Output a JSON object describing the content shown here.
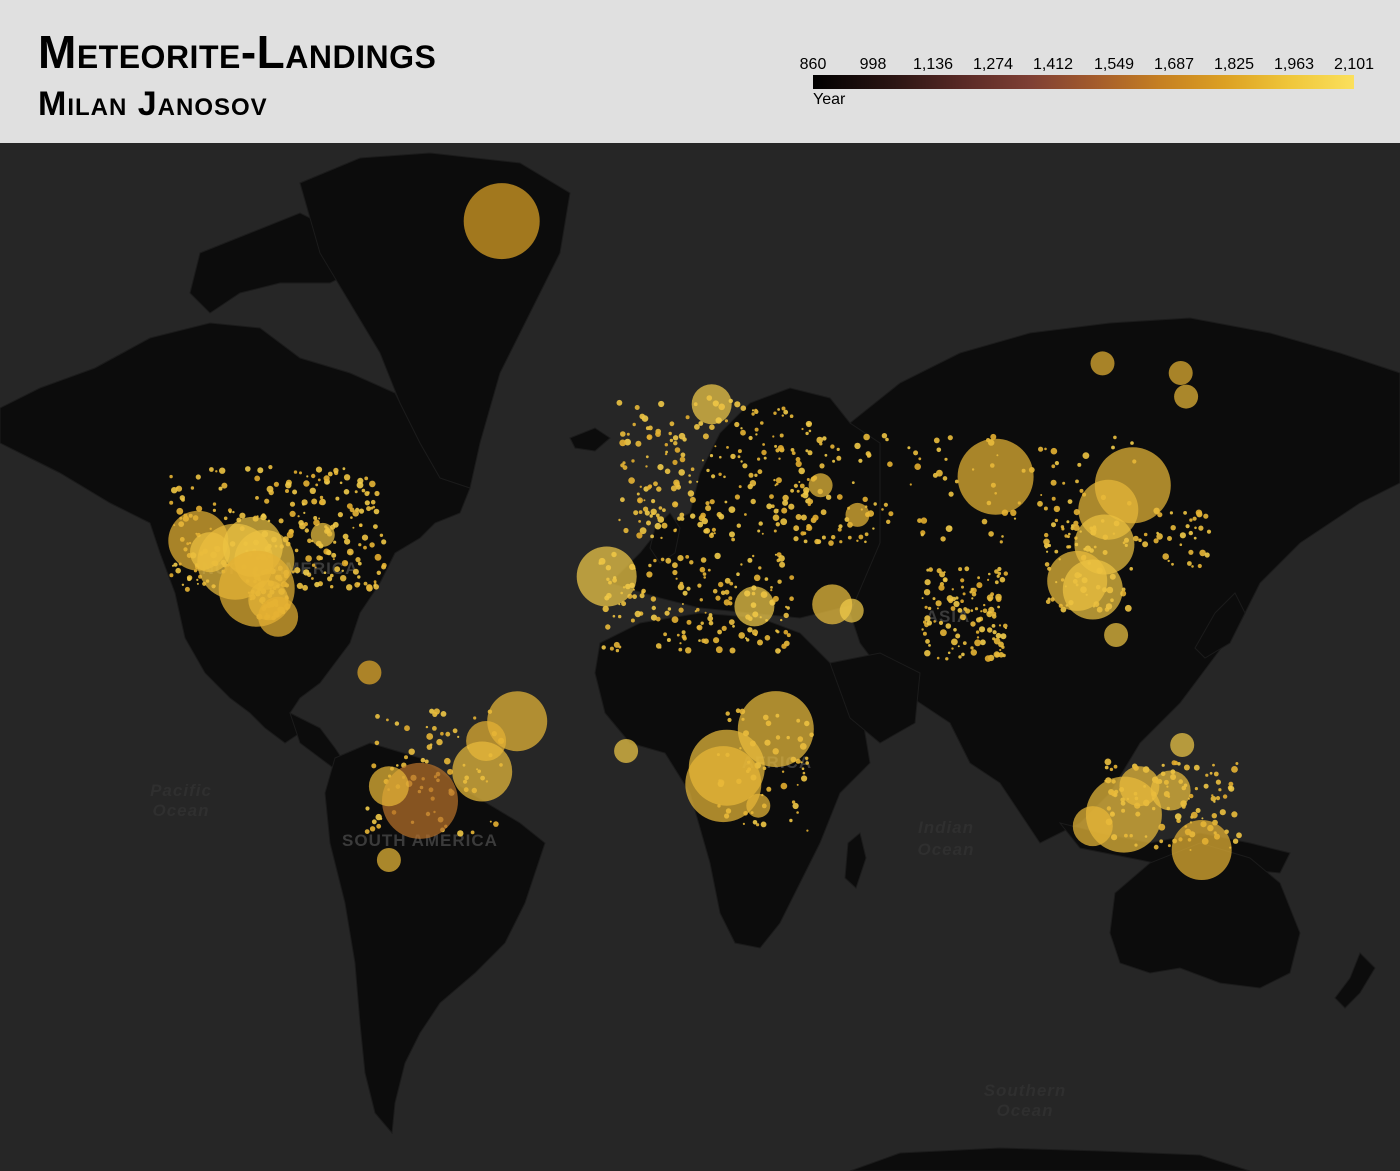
{
  "header": {
    "title": "Meteorite-Landings",
    "author": "Milan Janosov"
  },
  "legend": {
    "title": "Year",
    "ticks": [
      "860",
      "998",
      "1,136",
      "1,274",
      "1,412",
      "1,549",
      "1,687",
      "1,825",
      "1,963",
      "2,101"
    ],
    "range": [
      860,
      2101
    ],
    "colors": [
      "#000000",
      "#5a2a26",
      "#a35b2c",
      "#dca023",
      "#fbe05c"
    ]
  },
  "map": {
    "background": "#262626",
    "land_color": "#0c0c0c",
    "continent_labels": [
      "NORTH AMERICA",
      "SOUTH AMERICA",
      "AFRICA",
      "ASIA"
    ],
    "ocean_labels": [
      [
        "Pacific",
        "Ocean"
      ],
      [
        "Indian",
        "Ocean"
      ],
      [
        "Southern",
        "Ocean"
      ]
    ]
  },
  "chart_data": {
    "type": "scatter",
    "x_field": "longitude",
    "y_field": "latitude",
    "size_field": "mass",
    "color_field": "year",
    "points": [
      {
        "lon": -40.0,
        "lat": 76.1,
        "year": 1800,
        "size": "xl"
      },
      {
        "lon": -118.0,
        "lat": 35.8,
        "year": 1880,
        "size": "l"
      },
      {
        "lon": -115.0,
        "lat": 33.4,
        "year": 1950,
        "size": "m"
      },
      {
        "lon": -108.5,
        "lat": 31.3,
        "year": 1930,
        "size": "xl"
      },
      {
        "lon": -101.0,
        "lat": 31.7,
        "year": 1940,
        "size": "l"
      },
      {
        "lon": -104.0,
        "lat": 34.5,
        "year": 1960,
        "size": "l"
      },
      {
        "lon": -103.0,
        "lat": 25.2,
        "year": 1880,
        "size": "xl"
      },
      {
        "lon": -100.0,
        "lat": 22.5,
        "year": 1900,
        "size": "m"
      },
      {
        "lon": -97.5,
        "lat": 18.5,
        "year": 1870,
        "size": "m"
      },
      {
        "lon": -86.0,
        "lat": 37.0,
        "year": 1950,
        "size": "s"
      },
      {
        "lon": -74.0,
        "lat": 4.5,
        "year": 1830,
        "size": "s"
      },
      {
        "lon": -36.0,
        "lat": -8.0,
        "year": 1900,
        "size": "l"
      },
      {
        "lon": -44.0,
        "lat": -13.0,
        "year": 1880,
        "size": "m"
      },
      {
        "lon": -45.0,
        "lat": -20.5,
        "year": 1920,
        "size": "l"
      },
      {
        "lon": -61.0,
        "lat": -27.4,
        "year": 1576,
        "size": "xl"
      },
      {
        "lon": -69.0,
        "lat": -24.0,
        "year": 1900,
        "size": "m"
      },
      {
        "lon": -69.0,
        "lat": -40.0,
        "year": 1900,
        "size": "s"
      },
      {
        "lon": -13.0,
        "lat": 28.0,
        "year": 2000,
        "size": "l"
      },
      {
        "lon": -8.0,
        "lat": -15.5,
        "year": 1980,
        "size": "s"
      },
      {
        "lon": 17.9,
        "lat": -19.6,
        "year": 1920,
        "size": "xl"
      },
      {
        "lon": 17.0,
        "lat": -23.5,
        "year": 1900,
        "size": "xl"
      },
      {
        "lon": 30.5,
        "lat": -10.0,
        "year": 1930,
        "size": "xl"
      },
      {
        "lon": 26.0,
        "lat": -28.5,
        "year": 1900,
        "size": "s"
      },
      {
        "lon": 25.0,
        "lat": 21.0,
        "year": 2000,
        "size": "m"
      },
      {
        "lon": 45.0,
        "lat": 21.5,
        "year": 1940,
        "size": "m"
      },
      {
        "lon": 50.0,
        "lat": 20.0,
        "year": 2000,
        "size": "s"
      },
      {
        "lon": 14.0,
        "lat": 59.0,
        "year": 2000,
        "size": "m"
      },
      {
        "lon": 42.0,
        "lat": 46.5,
        "year": 1920,
        "size": "s"
      },
      {
        "lon": 51.5,
        "lat": 41.0,
        "year": 1900,
        "size": "s"
      },
      {
        "lon": 87.0,
        "lat": 48.0,
        "year": 1890,
        "size": "xl"
      },
      {
        "lon": 122.3,
        "lat": 46.5,
        "year": 1900,
        "size": "xl"
      },
      {
        "lon": 116.0,
        "lat": 42.0,
        "year": 1910,
        "size": "l"
      },
      {
        "lon": 115.0,
        "lat": 35.0,
        "year": 1950,
        "size": "l"
      },
      {
        "lon": 108.0,
        "lat": 27.0,
        "year": 1920,
        "size": "l"
      },
      {
        "lon": 112.0,
        "lat": 25.0,
        "year": 1960,
        "size": "l"
      },
      {
        "lon": 118.0,
        "lat": 14.0,
        "year": 1960,
        "size": "s"
      },
      {
        "lon": 114.5,
        "lat": 64.0,
        "year": 1880,
        "size": "s"
      },
      {
        "lon": 134.6,
        "lat": 62.9,
        "year": 1880,
        "size": "s"
      },
      {
        "lon": 136.0,
        "lat": 60.0,
        "year": 1900,
        "size": "s"
      },
      {
        "lon": 120.0,
        "lat": -30.5,
        "year": 1920,
        "size": "xl"
      },
      {
        "lon": 112.0,
        "lat": -33.0,
        "year": 1900,
        "size": "m"
      },
      {
        "lon": 132.0,
        "lat": -25.0,
        "year": 1940,
        "size": "m"
      },
      {
        "lon": 140.0,
        "lat": -38.0,
        "year": 1880,
        "size": "l"
      },
      {
        "lon": 135.0,
        "lat": -14.0,
        "year": 1980,
        "size": "s"
      },
      {
        "lon": 124.0,
        "lat": -24.0,
        "year": 1920,
        "size": "m"
      }
    ]
  }
}
